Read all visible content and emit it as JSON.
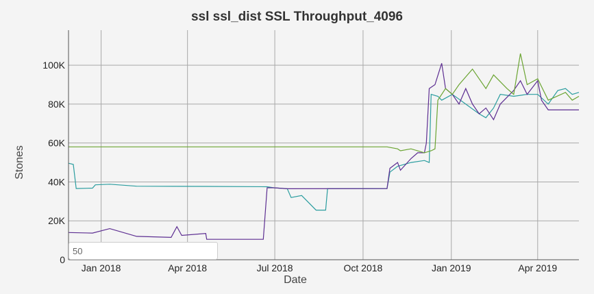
{
  "chart_data": {
    "type": "line",
    "title": "ssl ssl_dist SSL Throughput_4096",
    "xlabel": "Date",
    "ylabel": "Stones",
    "xlim": [
      "2017-11-28",
      "2019-05-14"
    ],
    "ylim": [
      0,
      118000
    ],
    "grid": true,
    "x_ticks": [
      {
        "date": "2018-01-01",
        "label": "Jan 2018"
      },
      {
        "date": "2018-04-01",
        "label": "Apr 2018"
      },
      {
        "date": "2018-07-01",
        "label": "Jul 2018"
      },
      {
        "date": "2018-10-01",
        "label": "Oct 2018"
      },
      {
        "date": "2019-01-01",
        "label": "Jan 2019"
      },
      {
        "date": "2019-04-01",
        "label": "Apr 2019"
      }
    ],
    "y_ticks": [
      {
        "value": 0,
        "label": "0"
      },
      {
        "value": 20000,
        "label": "20K"
      },
      {
        "value": 40000,
        "label": "40K"
      },
      {
        "value": 60000,
        "label": "60K"
      },
      {
        "value": 80000,
        "label": "80K"
      },
      {
        "value": 100000,
        "label": "100K"
      }
    ],
    "series": [
      {
        "color": "#2a9d9f",
        "points": [
          [
            "2017-11-28",
            49600
          ],
          [
            "2017-12-03",
            49000
          ],
          [
            "2017-12-06",
            36600
          ],
          [
            "2017-12-23",
            36800
          ],
          [
            "2017-12-26",
            38500
          ],
          [
            "2018-01-10",
            38800
          ],
          [
            "2018-02-07",
            37800
          ],
          [
            "2018-04-20",
            37700
          ],
          [
            "2018-06-23",
            37500
          ],
          [
            "2018-06-30",
            37000
          ],
          [
            "2018-07-14",
            36500
          ],
          [
            "2018-07-18",
            32000
          ],
          [
            "2018-07-29",
            33000
          ],
          [
            "2018-08-13",
            25500
          ],
          [
            "2018-08-23",
            25500
          ],
          [
            "2018-08-25",
            36500
          ],
          [
            "2018-10-26",
            36600
          ],
          [
            "2018-10-29",
            45000
          ],
          [
            "2018-11-06",
            48000
          ],
          [
            "2018-11-20",
            50000
          ],
          [
            "2018-12-04",
            51000
          ],
          [
            "2018-12-09",
            50000
          ],
          [
            "2018-12-11",
            85000
          ],
          [
            "2018-12-18",
            84000
          ],
          [
            "2018-12-22",
            82000
          ],
          [
            "2019-01-02",
            85000
          ],
          [
            "2019-01-16",
            80000
          ],
          [
            "2019-01-30",
            75000
          ],
          [
            "2019-02-06",
            73000
          ],
          [
            "2019-02-14",
            78000
          ],
          [
            "2019-02-21",
            85000
          ],
          [
            "2019-03-07",
            84000
          ],
          [
            "2019-03-21",
            85000
          ],
          [
            "2019-04-01",
            85000
          ],
          [
            "2019-04-12",
            80000
          ],
          [
            "2019-04-22",
            87000
          ],
          [
            "2019-04-30",
            88000
          ],
          [
            "2019-05-07",
            85000
          ],
          [
            "2019-05-14",
            86000
          ]
        ]
      },
      {
        "color": "#5c2d91",
        "points": [
          [
            "2017-11-28",
            14000
          ],
          [
            "2017-12-23",
            13700
          ],
          [
            "2018-01-10",
            16000
          ],
          [
            "2018-02-07",
            12000
          ],
          [
            "2018-03-15",
            11500
          ],
          [
            "2018-03-21",
            17000
          ],
          [
            "2018-03-26",
            12500
          ],
          [
            "2018-04-20",
            13500
          ],
          [
            "2018-04-21",
            10500
          ],
          [
            "2018-06-19",
            10500
          ],
          [
            "2018-06-23",
            37000
          ],
          [
            "2018-06-30",
            37000
          ],
          [
            "2018-07-14",
            36500
          ],
          [
            "2018-10-26",
            36600
          ],
          [
            "2018-10-29",
            47000
          ],
          [
            "2018-11-06",
            50000
          ],
          [
            "2018-11-09",
            46000
          ],
          [
            "2018-11-20",
            52000
          ],
          [
            "2018-11-27",
            55000
          ],
          [
            "2018-12-04",
            55000
          ],
          [
            "2018-12-06",
            60000
          ],
          [
            "2018-12-09",
            88000
          ],
          [
            "2018-12-15",
            90000
          ],
          [
            "2018-12-22",
            101000
          ],
          [
            "2018-12-26",
            88000
          ],
          [
            "2019-01-02",
            85000
          ],
          [
            "2019-01-09",
            80000
          ],
          [
            "2019-01-16",
            88000
          ],
          [
            "2019-01-23",
            80000
          ],
          [
            "2019-01-30",
            75000
          ],
          [
            "2019-02-06",
            78000
          ],
          [
            "2019-02-14",
            72000
          ],
          [
            "2019-02-21",
            80000
          ],
          [
            "2019-03-07",
            87000
          ],
          [
            "2019-03-14",
            92000
          ],
          [
            "2019-03-21",
            85000
          ],
          [
            "2019-04-01",
            92000
          ],
          [
            "2019-04-05",
            82000
          ],
          [
            "2019-04-12",
            77000
          ],
          [
            "2019-05-14",
            77000
          ]
        ]
      },
      {
        "color": "#6aa431",
        "points": [
          [
            "2017-11-28",
            58000
          ],
          [
            "2018-10-26",
            58000
          ],
          [
            "2018-11-06",
            57000
          ],
          [
            "2018-11-09",
            56000
          ],
          [
            "2018-11-20",
            57000
          ],
          [
            "2018-12-04",
            55000
          ],
          [
            "2018-12-11",
            56000
          ],
          [
            "2018-12-15",
            57000
          ],
          [
            "2018-12-18",
            82000
          ],
          [
            "2018-12-26",
            88000
          ],
          [
            "2019-01-02",
            85000
          ],
          [
            "2019-01-09",
            90000
          ],
          [
            "2019-01-23",
            98000
          ],
          [
            "2019-02-06",
            88000
          ],
          [
            "2019-02-14",
            95000
          ],
          [
            "2019-02-28",
            88000
          ],
          [
            "2019-03-07",
            85000
          ],
          [
            "2019-03-14",
            106000
          ],
          [
            "2019-03-21",
            90000
          ],
          [
            "2019-04-01",
            93000
          ],
          [
            "2019-04-12",
            82000
          ],
          [
            "2019-04-30",
            86000
          ],
          [
            "2019-05-07",
            82000
          ],
          [
            "2019-05-14",
            84000
          ]
        ]
      }
    ]
  },
  "controls": {
    "window_value": "50"
  }
}
